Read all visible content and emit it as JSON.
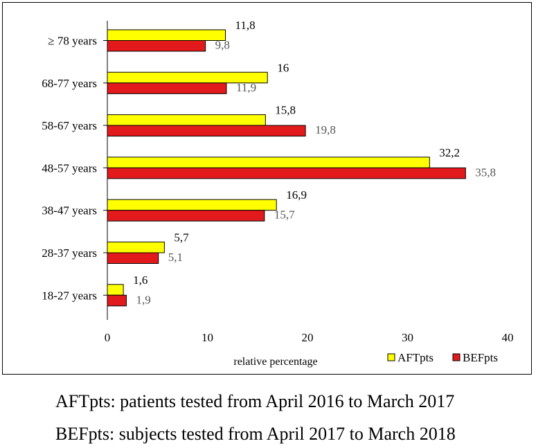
{
  "chart_data": {
    "type": "bar",
    "orientation": "horizontal",
    "categories": [
      "≥ 78 years",
      "68-77 years",
      "58-67 years",
      "48-57 years",
      "38-47 years",
      "28-37 years",
      "18-27 years"
    ],
    "series": [
      {
        "name": "AFTpts",
        "color": "#ffff00",
        "values": [
          11.8,
          16,
          15.8,
          32.2,
          16.9,
          5.7,
          1.6
        ],
        "labels": [
          "11,8",
          "16",
          "15,8",
          "32,2",
          "16,9",
          "5,7",
          "1,6"
        ]
      },
      {
        "name": "BEFpts",
        "color": "#e31a1c",
        "values": [
          9.8,
          11.9,
          19.8,
          35.8,
          15.7,
          5.1,
          1.9
        ],
        "labels": [
          "9,8",
          "11,9",
          "19,8",
          "35,8",
          "15,7",
          "5,1",
          "1,9"
        ]
      }
    ],
    "xlabel": "relative  percentage",
    "xlim": [
      0,
      40
    ],
    "xticks": [
      0,
      10,
      20,
      30,
      40
    ],
    "grid": false,
    "legend_position": "bottom-right"
  },
  "captions": {
    "line1": "AFTpts: patients tested from April 2016 to March 2017",
    "line2": "BEFpts: subjects tested from April 2017 to March 2018"
  },
  "colors": {
    "aft_label": "#000000",
    "bef_label": "#555555"
  }
}
